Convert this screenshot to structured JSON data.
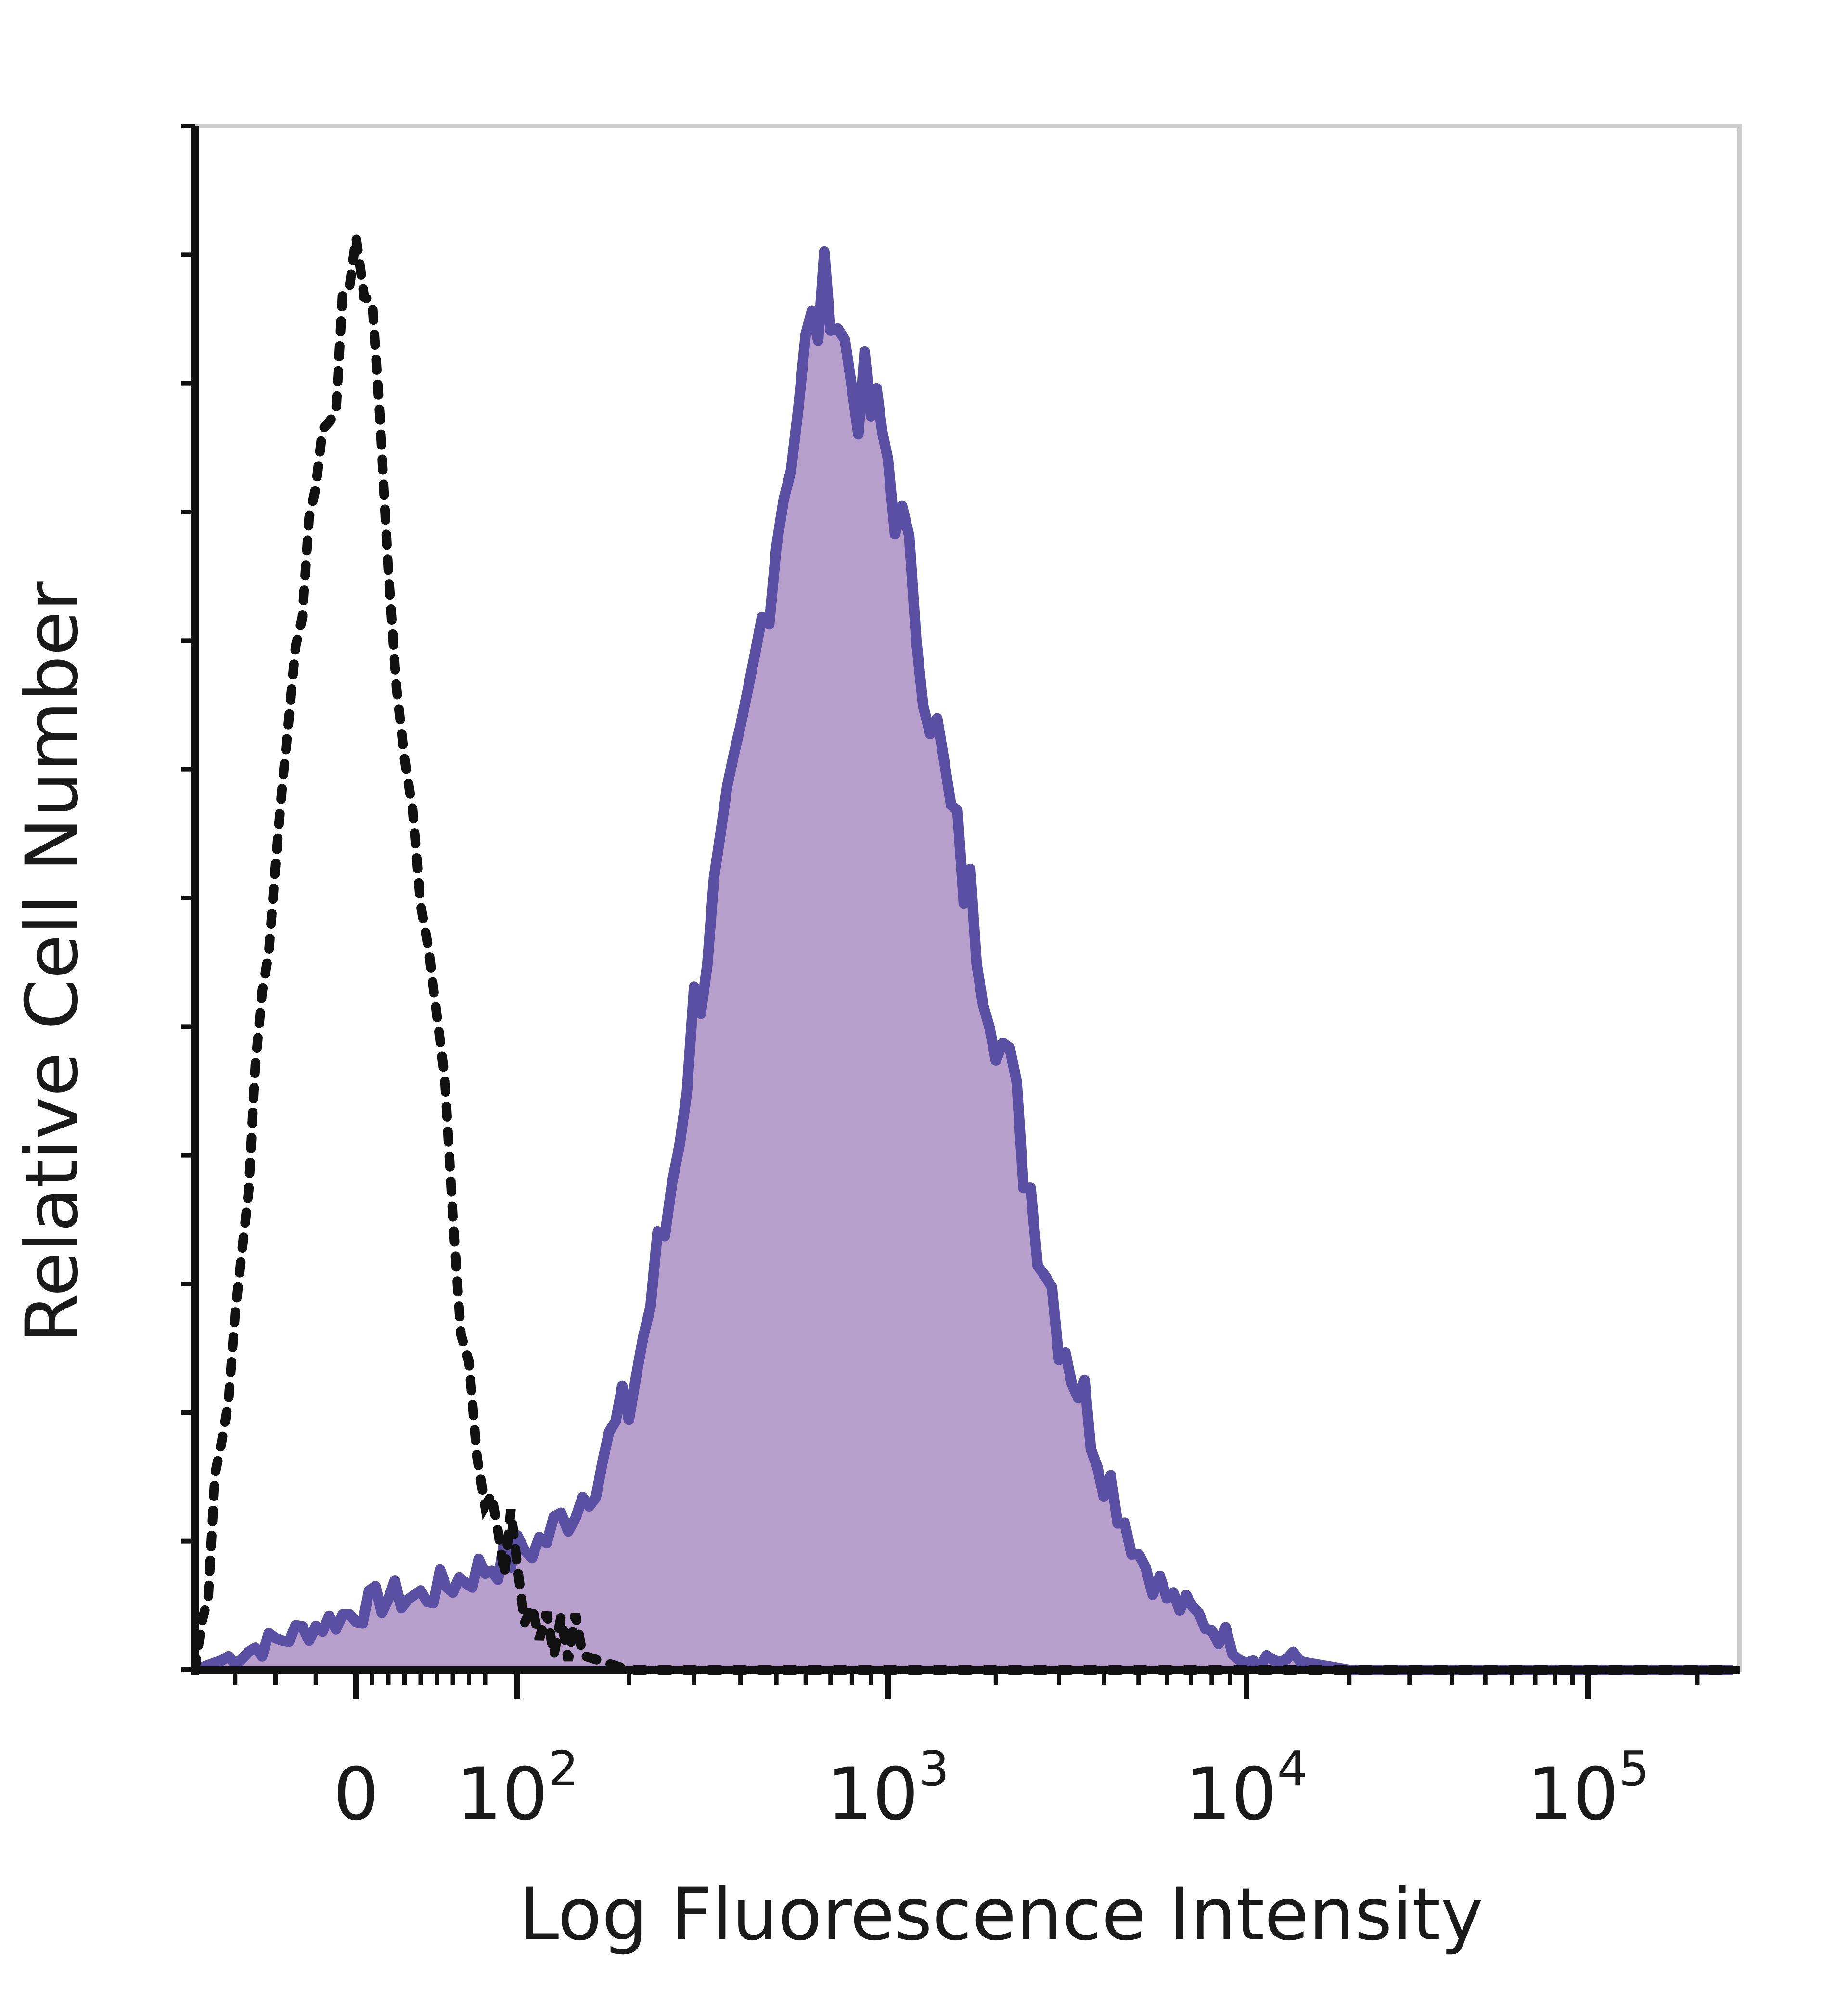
{
  "chart_data": {
    "type": "area",
    "title": "",
    "xlabel": "Log Fluorescence Intensity",
    "ylabel": "Relative Cell Number",
    "x_scale": "biexponential (linear near 0, log above 10^2)",
    "xlim": [
      -40,
      250000
    ],
    "ylim": [
      0,
      1
    ],
    "x_tick_labels": [
      {
        "value": 0,
        "base": "0",
        "exp": ""
      },
      {
        "value": 100,
        "base": "10",
        "exp": "2"
      },
      {
        "value": 1000,
        "base": "10",
        "exp": "3"
      },
      {
        "value": 10000,
        "base": "10",
        "exp": "4"
      },
      {
        "value": 100000,
        "base": "10",
        "exp": "5"
      }
    ],
    "grid": false,
    "legend": "none",
    "series": [
      {
        "style": "dotted black line",
        "color": "#111111",
        "x": [
          -40,
          -30,
          -20,
          -10,
          0,
          10,
          20,
          30,
          40,
          50,
          60,
          70,
          80,
          100,
          120,
          150,
          200,
          300,
          1000,
          10000,
          250000
        ],
        "y": [
          0.0,
          0.22,
          0.55,
          0.8,
          0.97,
          0.92,
          0.75,
          0.6,
          0.55,
          0.45,
          0.3,
          0.2,
          0.13,
          0.07,
          0.03,
          0.01,
          0.0,
          0.0,
          0.0,
          0.0,
          0.0
        ]
      },
      {
        "style": "filled area with outline",
        "fill": "#b79fcb",
        "color": "#5a4fa3",
        "x": [
          -40,
          -20,
          0,
          20,
          40,
          60,
          80,
          100,
          120,
          150,
          200,
          250,
          300,
          400,
          500,
          600,
          700,
          800,
          900,
          1000,
          1200,
          1500,
          2000,
          2500,
          3000,
          4000,
          5000,
          6000,
          8000,
          10000,
          15000,
          20000,
          250000
        ],
        "y": [
          0.0,
          0.02,
          0.04,
          0.05,
          0.05,
          0.06,
          0.07,
          0.08,
          0.09,
          0.12,
          0.18,
          0.3,
          0.45,
          0.62,
          0.78,
          0.9,
          0.95,
          0.88,
          0.86,
          0.83,
          0.72,
          0.58,
          0.45,
          0.33,
          0.24,
          0.14,
          0.08,
          0.05,
          0.03,
          0.01,
          0.005,
          0.0,
          0.0
        ]
      }
    ]
  }
}
